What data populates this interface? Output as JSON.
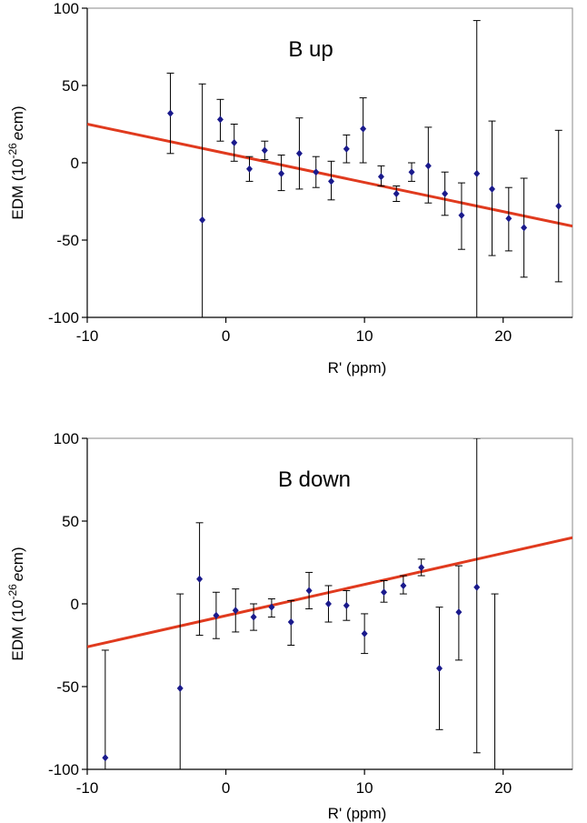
{
  "chart_data": [
    {
      "type": "scatter",
      "title": "B up",
      "xlabel": "R' (ppm)",
      "ylabel_main": "EDM (10",
      "ylabel_sup": "-26",
      "ylabel_ital": "e",
      "ylabel_tail": "cm)",
      "xlim": [
        -10,
        25
      ],
      "ylim": [
        -100,
        100
      ],
      "xticks": [
        "-10",
        "0",
        "10",
        "20"
      ],
      "yticks": [
        "100",
        "50",
        "0",
        "-50",
        "-100"
      ],
      "marker_color": "#1a1a8c",
      "fit_color": "#e03a1e",
      "fit": {
        "x": [
          -10,
          25
        ],
        "y": [
          25,
          -41
        ]
      },
      "points": [
        {
          "x": -4.0,
          "y": 32,
          "lo": 6,
          "hi": 58
        },
        {
          "x": -1.7,
          "y": -37,
          "lo": -100,
          "hi": 51
        },
        {
          "x": -0.4,
          "y": 28,
          "lo": 14,
          "hi": 41
        },
        {
          "x": 0.6,
          "y": 13,
          "lo": 1,
          "hi": 25
        },
        {
          "x": 1.7,
          "y": -4,
          "lo": -12,
          "hi": 4
        },
        {
          "x": 2.8,
          "y": 8,
          "lo": 2,
          "hi": 14
        },
        {
          "x": 4.0,
          "y": -7,
          "lo": -18,
          "hi": 5
        },
        {
          "x": 5.3,
          "y": 6,
          "lo": -17,
          "hi": 29
        },
        {
          "x": 6.5,
          "y": -6,
          "lo": -16,
          "hi": 4
        },
        {
          "x": 7.6,
          "y": -12,
          "lo": -24,
          "hi": 1
        },
        {
          "x": 8.7,
          "y": 9,
          "lo": 0,
          "hi": 18
        },
        {
          "x": 9.9,
          "y": 22,
          "lo": 0,
          "hi": 42
        },
        {
          "x": 11.2,
          "y": -9,
          "lo": -15,
          "hi": -2
        },
        {
          "x": 12.3,
          "y": -20,
          "lo": -25,
          "hi": -15
        },
        {
          "x": 13.4,
          "y": -6,
          "lo": -12,
          "hi": 0
        },
        {
          "x": 14.6,
          "y": -2,
          "lo": -26,
          "hi": 23
        },
        {
          "x": 15.8,
          "y": -20,
          "lo": -34,
          "hi": -6
        },
        {
          "x": 17.0,
          "y": -34,
          "lo": -56,
          "hi": -13
        },
        {
          "x": 18.1,
          "y": -7,
          "lo": -100,
          "hi": 92
        },
        {
          "x": 19.2,
          "y": -17,
          "lo": -60,
          "hi": 27
        },
        {
          "x": 20.4,
          "y": -36,
          "lo": -57,
          "hi": -16
        },
        {
          "x": 21.5,
          "y": -42,
          "lo": -74,
          "hi": -10
        },
        {
          "x": 24.0,
          "y": -28,
          "lo": -77,
          "hi": 21
        }
      ]
    },
    {
      "type": "scatter",
      "title": "B down",
      "xlabel": "R' (ppm)",
      "ylabel_main": "EDM (10",
      "ylabel_sup": "-26",
      "ylabel_ital": "e",
      "ylabel_tail": "cm)",
      "xlim": [
        -10,
        25
      ],
      "ylim": [
        -100,
        100
      ],
      "xticks": [
        "-10",
        "0",
        "10",
        "20"
      ],
      "yticks": [
        "100",
        "50",
        "0",
        "-50",
        "-100"
      ],
      "marker_color": "#1a1a8c",
      "fit_color": "#e03a1e",
      "fit": {
        "x": [
          -10,
          25
        ],
        "y": [
          -26,
          40
        ]
      },
      "points": [
        {
          "x": -8.7,
          "y": -93,
          "lo": -100,
          "hi": -28
        },
        {
          "x": -3.3,
          "y": -51,
          "lo": -100,
          "hi": 6
        },
        {
          "x": -1.9,
          "y": 15,
          "lo": -19,
          "hi": 49
        },
        {
          "x": -0.7,
          "y": -7,
          "lo": -21,
          "hi": 7
        },
        {
          "x": 0.7,
          "y": -4,
          "lo": -17,
          "hi": 9
        },
        {
          "x": 2.0,
          "y": -8,
          "lo": -16,
          "hi": 0
        },
        {
          "x": 3.3,
          "y": -2,
          "lo": -8,
          "hi": 3
        },
        {
          "x": 4.7,
          "y": -11,
          "lo": -25,
          "hi": 2
        },
        {
          "x": 6.0,
          "y": 8,
          "lo": -3,
          "hi": 19
        },
        {
          "x": 7.4,
          "y": 0,
          "lo": -11,
          "hi": 11
        },
        {
          "x": 8.7,
          "y": -1,
          "lo": -10,
          "hi": 8
        },
        {
          "x": 10.0,
          "y": -18,
          "lo": -30,
          "hi": -6
        },
        {
          "x": 11.4,
          "y": 7,
          "lo": 1,
          "hi": 14
        },
        {
          "x": 12.8,
          "y": 11,
          "lo": 6,
          "hi": 17
        },
        {
          "x": 14.1,
          "y": 22,
          "lo": 17,
          "hi": 27
        },
        {
          "x": 15.4,
          "y": -39,
          "lo": -76,
          "hi": -2
        },
        {
          "x": 16.8,
          "y": -5,
          "lo": -34,
          "hi": 23
        },
        {
          "x": 18.1,
          "y": 10,
          "lo": -90,
          "hi": 100
        },
        {
          "x": 19.4,
          "y": null,
          "lo": -100,
          "hi": 6
        }
      ]
    }
  ]
}
